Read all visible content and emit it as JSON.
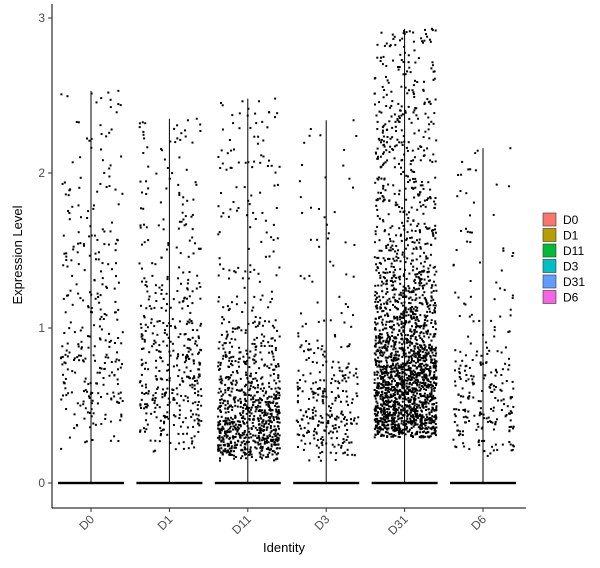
{
  "chart_data": {
    "type": "violin",
    "title": "",
    "xlabel": "Identity",
    "ylabel": "Expression Level",
    "categories": [
      "D0",
      "D1",
      "D11",
      "D3",
      "D31",
      "D6"
    ],
    "yticks": [
      0,
      1,
      2,
      3
    ],
    "ylim": [
      -0.16,
      3.05
    ],
    "grid": false,
    "legend_position": "right",
    "legend": [
      {
        "label": "D0",
        "color": "#F8766D"
      },
      {
        "label": "D1",
        "color": "#B79F00"
      },
      {
        "label": "D11",
        "color": "#00BA38"
      },
      {
        "label": "D3",
        "color": "#00BFC4"
      },
      {
        "label": "D31",
        "color": "#619CFF"
      },
      {
        "label": "D6",
        "color": "#F564E3"
      }
    ],
    "series": [
      {
        "category": "D0",
        "max": 2.53,
        "nonzero_points": 300,
        "nonzero_range": [
          0.2,
          2.53
        ],
        "median_nonzero": 0.9
      },
      {
        "category": "D1",
        "max": 2.35,
        "nonzero_points": 450,
        "nonzero_range": [
          0.2,
          2.35
        ],
        "median_nonzero": 0.8
      },
      {
        "category": "D11",
        "max": 2.48,
        "nonzero_points": 900,
        "nonzero_range": [
          0.15,
          2.48
        ],
        "median_nonzero": 0.45
      },
      {
        "category": "D3",
        "max": 2.34,
        "nonzero_points": 300,
        "nonzero_range": [
          0.15,
          2.34
        ],
        "median_nonzero": 0.5
      },
      {
        "category": "D31",
        "max": 2.93,
        "nonzero_points": 2200,
        "nonzero_range": [
          0.3,
          2.93
        ],
        "median_nonzero": 0.7
      },
      {
        "category": "D6",
        "max": 2.16,
        "nonzero_points": 250,
        "nonzero_range": [
          0.15,
          2.16
        ],
        "median_nonzero": 0.6
      }
    ]
  }
}
